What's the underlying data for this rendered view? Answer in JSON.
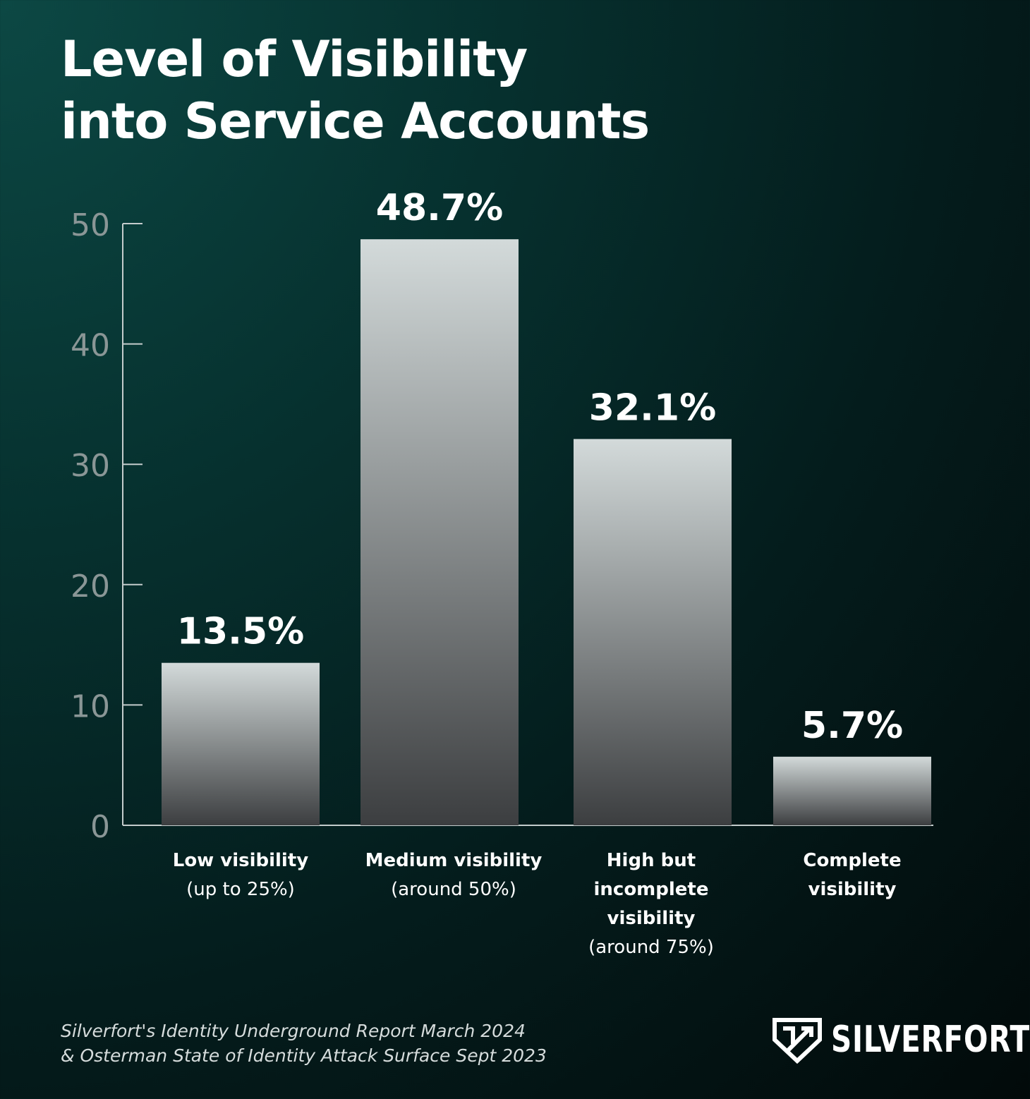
{
  "title_lines": [
    "Level of Visibility",
    "into Service Accounts"
  ],
  "chart_data": {
    "type": "bar",
    "title": "Level of Visibility into Service Accounts",
    "categories": [
      {
        "bold": "Low visibility",
        "sub": "(up to 25%)"
      },
      {
        "bold": "Medium visibility",
        "sub": "(around 50%)"
      },
      {
        "bold": "High but incomplete visibility",
        "sub": "(around 75%)"
      },
      {
        "bold": "Complete visibility",
        "sub": ""
      }
    ],
    "values": [
      13.5,
      48.7,
      32.1,
      5.7
    ],
    "data_labels": [
      "13.5%",
      "48.7%",
      "32.1%",
      "5.7%"
    ],
    "yticks": [
      0,
      10,
      20,
      30,
      40,
      50
    ],
    "ylim": [
      0,
      50
    ],
    "xlabel": "",
    "ylabel": "",
    "grid": false
  },
  "source": {
    "line1": "Silverfort's Identity Underground Report March 2024",
    "line2": "& Osterman State of Identity Attack Surface Sept 2023"
  },
  "logo": {
    "word": "SILVERFORT",
    "icon": "shield-icon"
  },
  "colors": {
    "bar_top": "#d3dada",
    "bar_bottom": "#3c3e40",
    "axis": "#c4cccc",
    "tick_label": "#8a9696"
  }
}
